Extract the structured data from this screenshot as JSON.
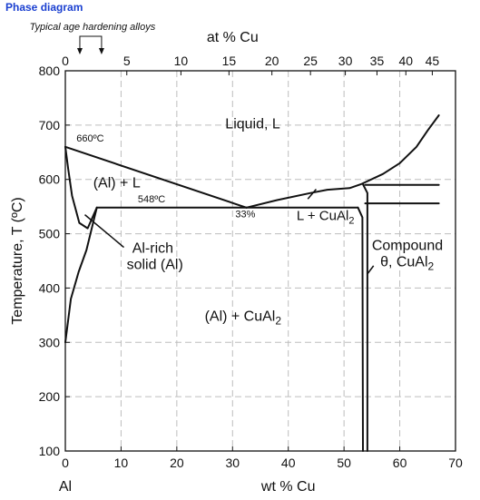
{
  "page_title": "Phase diagram",
  "colors": {
    "title": "#1a3fd0",
    "line": "#111111",
    "grid": "#bdbdbd"
  },
  "chart_data": {
    "type": "phase-diagram",
    "xlabel": "wt % Cu",
    "x2label": "at % Cu",
    "ylabel": "Temperature, T (ºC)",
    "xlim": [
      0,
      70
    ],
    "ylim": [
      100,
      800
    ],
    "x_ticks": [
      "0",
      "10",
      "20",
      "30",
      "40",
      "50",
      "60",
      "70"
    ],
    "x2_ticks": [
      "0",
      "5",
      "10",
      "15",
      "20",
      "25",
      "30",
      "35",
      "40",
      "45"
    ],
    "y_ticks": [
      "100",
      "200",
      "300",
      "400",
      "500",
      "600",
      "700",
      "800"
    ],
    "grid": true,
    "x_origin_label": "Al",
    "bracket_label": "Typical age hardening alloys",
    "bracket_range_wt": [
      2.6,
      6.5
    ],
    "series": [
      {
        "points": [
          [
            0,
            660
          ],
          [
            32.5,
            548
          ]
        ]
      },
      {
        "points": [
          [
            32.5,
            548
          ],
          [
            38,
            562
          ],
          [
            44,
            575
          ],
          [
            47,
            581
          ],
          [
            51,
            584
          ],
          [
            53,
            591
          ],
          [
            57,
            610
          ],
          [
            60,
            630
          ],
          [
            63,
            660
          ],
          [
            65,
            690
          ],
          [
            67,
            718
          ]
        ]
      },
      {
        "points": [
          [
            0,
            660
          ],
          [
            0.5,
            620
          ],
          [
            1.2,
            570
          ],
          [
            2.5,
            520
          ],
          [
            4,
            510
          ],
          [
            5.65,
            548
          ]
        ]
      },
      {
        "points": [
          [
            0,
            300
          ],
          [
            1,
            380
          ],
          [
            2.4,
            430
          ],
          [
            3.8,
            470
          ],
          [
            5.65,
            548
          ]
        ]
      },
      {
        "points": [
          [
            5.65,
            548
          ],
          [
            52.5,
            548
          ]
        ]
      },
      {
        "points": [
          [
            52.5,
            548
          ],
          [
            53.3,
            530
          ],
          [
            53.4,
            100
          ]
        ]
      },
      {
        "points": [
          [
            53.4,
            591
          ],
          [
            54.2,
            575
          ],
          [
            54.2,
            100
          ]
        ]
      },
      {
        "points": [
          [
            53.8,
            590
          ],
          [
            67,
            590
          ]
        ]
      },
      {
        "points": [
          [
            53.8,
            556
          ],
          [
            67,
            556
          ]
        ]
      }
    ],
    "annotations": [
      {
        "text": "660ºC",
        "x": 2,
        "y": 670,
        "size": 11
      },
      {
        "text": "548ºC",
        "x": 13,
        "y": 558,
        "size": 11
      },
      {
        "text": "33%",
        "x": 30.5,
        "y": 530,
        "size": 11
      },
      {
        "text": "Liquid, L",
        "x": 28.7,
        "y": 694,
        "size": 16
      },
      {
        "text": "(Al) + L",
        "x": 5,
        "y": 585,
        "size": 16
      },
      {
        "text": "Al-rich",
        "x": 12,
        "y": 465,
        "size": 16
      },
      {
        "text": "solid (Al)",
        "x": 11,
        "y": 435,
        "size": 16
      },
      {
        "text": "(Al) + CuAl",
        "sub": "2",
        "x": 25,
        "y": 340,
        "size": 16
      },
      {
        "text": "L + CuAl",
        "sub": "2",
        "x": 41.5,
        "y": 525,
        "size": 15
      },
      {
        "text": "Compound",
        "x": 55,
        "y": 470,
        "size": 16
      },
      {
        "text": "θ, CuAl",
        "sub": "2",
        "x": 56.5,
        "y": 440,
        "size": 16
      }
    ],
    "pointers": [
      {
        "from": [
          3.5,
          535
        ],
        "to": [
          10.5,
          475
        ]
      },
      {
        "from": [
          45,
          582
        ],
        "to": [
          43.5,
          564
        ]
      },
      {
        "from": [
          54.2,
          426
        ],
        "to": [
          55.3,
          441
        ]
      }
    ]
  }
}
